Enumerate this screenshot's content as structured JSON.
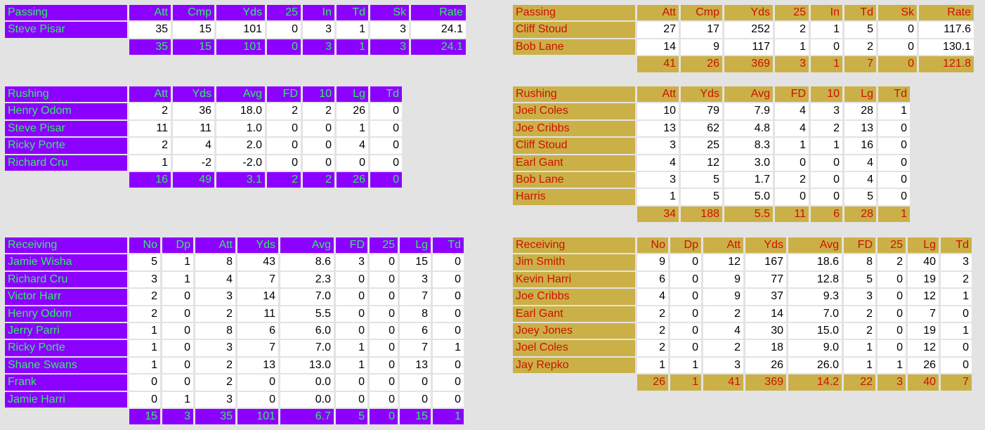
{
  "tables": {
    "a_pass": {
      "team": "a",
      "headers": [
        "Passing",
        "Att",
        "Cmp",
        "Yds",
        "25",
        "In",
        "Td",
        "Sk",
        "Rate"
      ],
      "rows": [
        {
          "name": "Steve Pisar",
          "values": [
            "35",
            "15",
            "101",
            "0",
            "3",
            "1",
            "3",
            "24.1"
          ]
        }
      ],
      "totals": [
        "35",
        "15",
        "101",
        "0",
        "3",
        "1",
        "3",
        "24.1"
      ]
    },
    "a_rush": {
      "team": "a",
      "headers": [
        "Rushing",
        "Att",
        "Yds",
        "Avg",
        "FD",
        "10",
        "Lg",
        "Td"
      ],
      "rows": [
        {
          "name": "Henry Odom",
          "values": [
            "2",
            "36",
            "18.0",
            "2",
            "2",
            "26",
            "0"
          ]
        },
        {
          "name": "Steve Pisar",
          "values": [
            "11",
            "11",
            "1.0",
            "0",
            "0",
            "1",
            "0"
          ]
        },
        {
          "name": "Ricky Porte",
          "values": [
            "2",
            "4",
            "2.0",
            "0",
            "0",
            "4",
            "0"
          ]
        },
        {
          "name": "Richard Cru",
          "values": [
            "1",
            "-2",
            "-2.0",
            "0",
            "0",
            "0",
            "0"
          ]
        }
      ],
      "totals": [
        "16",
        "49",
        "3.1",
        "2",
        "2",
        "26",
        "0"
      ]
    },
    "a_rec": {
      "team": "a",
      "headers": [
        "Receiving",
        "No",
        "Dp",
        "Att",
        "Yds",
        "Avg",
        "FD",
        "25",
        "Lg",
        "Td"
      ],
      "rows": [
        {
          "name": "Jamie Wisha",
          "values": [
            "5",
            "1",
            "8",
            "43",
            "8.6",
            "3",
            "0",
            "15",
            "0"
          ]
        },
        {
          "name": "Richard Cru",
          "values": [
            "3",
            "1",
            "4",
            "7",
            "2.3",
            "0",
            "0",
            "3",
            "0"
          ]
        },
        {
          "name": "Victor Harr",
          "values": [
            "2",
            "0",
            "3",
            "14",
            "7.0",
            "0",
            "0",
            "7",
            "0"
          ]
        },
        {
          "name": "Henry Odom",
          "values": [
            "2",
            "0",
            "2",
            "11",
            "5.5",
            "0",
            "0",
            "8",
            "0"
          ]
        },
        {
          "name": "Jerry Parri",
          "values": [
            "1",
            "0",
            "8",
            "6",
            "6.0",
            "0",
            "0",
            "6",
            "0"
          ]
        },
        {
          "name": "Ricky Porte",
          "values": [
            "1",
            "0",
            "3",
            "7",
            "7.0",
            "1",
            "0",
            "7",
            "1"
          ]
        },
        {
          "name": "Shane Swans",
          "values": [
            "1",
            "0",
            "2",
            "13",
            "13.0",
            "1",
            "0",
            "13",
            "0"
          ]
        },
        {
          "name": "Frank",
          "values": [
            "0",
            "0",
            "2",
            "0",
            "0.0",
            "0",
            "0",
            "0",
            "0"
          ]
        },
        {
          "name": "Jamie Harri",
          "values": [
            "0",
            "1",
            "3",
            "0",
            "0.0",
            "0",
            "0",
            "0",
            "0"
          ]
        }
      ],
      "totals": [
        "15",
        "3",
        "35",
        "101",
        "6.7",
        "5",
        "0",
        "15",
        "1"
      ]
    },
    "b_pass": {
      "team": "b",
      "headers": [
        "Passing",
        "Att",
        "Cmp",
        "Yds",
        "25",
        "In",
        "Td",
        "Sk",
        "Rate"
      ],
      "rows": [
        {
          "name": "Cliff Stoud",
          "values": [
            "27",
            "17",
            "252",
            "2",
            "1",
            "5",
            "0",
            "117.6"
          ]
        },
        {
          "name": "Bob Lane",
          "values": [
            "14",
            "9",
            "117",
            "1",
            "0",
            "2",
            "0",
            "130.1"
          ]
        }
      ],
      "totals": [
        "41",
        "26",
        "369",
        "3",
        "1",
        "7",
        "0",
        "121.8"
      ]
    },
    "b_rush": {
      "team": "b",
      "headers": [
        "Rushing",
        "Att",
        "Yds",
        "Avg",
        "FD",
        "10",
        "Lg",
        "Td"
      ],
      "rows": [
        {
          "name": "Joel Coles",
          "values": [
            "10",
            "79",
            "7.9",
            "4",
            "3",
            "28",
            "1"
          ]
        },
        {
          "name": "Joe Cribbs",
          "values": [
            "13",
            "62",
            "4.8",
            "4",
            "2",
            "13",
            "0"
          ]
        },
        {
          "name": "Cliff Stoud",
          "values": [
            "3",
            "25",
            "8.3",
            "1",
            "1",
            "16",
            "0"
          ]
        },
        {
          "name": "Earl Gant",
          "values": [
            "4",
            "12",
            "3.0",
            "0",
            "0",
            "4",
            "0"
          ]
        },
        {
          "name": "Bob Lane",
          "values": [
            "3",
            "5",
            "1.7",
            "2",
            "0",
            "4",
            "0"
          ]
        },
        {
          "name": "Harris",
          "values": [
            "1",
            "5",
            "5.0",
            "0",
            "0",
            "5",
            "0"
          ]
        }
      ],
      "totals": [
        "34",
        "188",
        "5.5",
        "11",
        "6",
        "28",
        "1"
      ]
    },
    "b_rec": {
      "team": "b",
      "headers": [
        "Receiving",
        "No",
        "Dp",
        "Att",
        "Yds",
        "Avg",
        "FD",
        "25",
        "Lg",
        "Td"
      ],
      "rows": [
        {
          "name": "Jim Smith",
          "values": [
            "9",
            "0",
            "12",
            "167",
            "18.6",
            "8",
            "2",
            "40",
            "3"
          ]
        },
        {
          "name": "Kevin Harri",
          "values": [
            "6",
            "0",
            "9",
            "77",
            "12.8",
            "5",
            "0",
            "19",
            "2"
          ]
        },
        {
          "name": "Joe Cribbs",
          "values": [
            "4",
            "0",
            "9",
            "37",
            "9.3",
            "3",
            "0",
            "12",
            "1"
          ]
        },
        {
          "name": "Earl Gant",
          "values": [
            "2",
            "0",
            "2",
            "14",
            "7.0",
            "2",
            "0",
            "7",
            "0"
          ]
        },
        {
          "name": "Joey Jones",
          "values": [
            "2",
            "0",
            "4",
            "30",
            "15.0",
            "2",
            "0",
            "19",
            "1"
          ]
        },
        {
          "name": "Joel Coles",
          "values": [
            "2",
            "0",
            "2",
            "18",
            "9.0",
            "1",
            "0",
            "12",
            "0"
          ]
        },
        {
          "name": "Jay Repko",
          "values": [
            "1",
            "1",
            "3",
            "26",
            "26.0",
            "1",
            "1",
            "26",
            "0"
          ]
        }
      ],
      "totals": [
        "26",
        "1",
        "41",
        "369",
        "14.2",
        "22",
        "3",
        "40",
        "7"
      ]
    }
  },
  "colors": {
    "team_a_bg": "#8c00ff",
    "team_a_text": "#33ee66",
    "team_b_bg": "#cbb048",
    "team_b_text": "#cc1100",
    "value_bg": "#ffffff",
    "page_bg": "#e3e3e3"
  }
}
